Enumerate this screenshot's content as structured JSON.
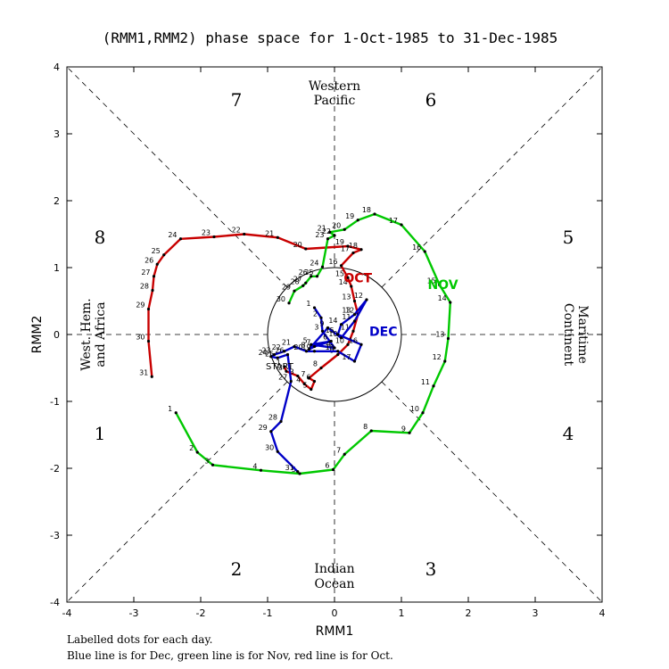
{
  "chart_data": {
    "type": "line",
    "title": "(RMM1,RMM2) phase space for  1-Oct-1985 to 31-Dec-1985",
    "xlabel": "RMM1",
    "ylabel": "RMM2",
    "xlim": [
      -4,
      4
    ],
    "ylim": [
      -4,
      4
    ],
    "x_ticks": [
      "-4",
      "-3",
      "-2",
      "-1",
      "0",
      "1",
      "2",
      "3",
      "4"
    ],
    "y_ticks": [
      "-4",
      "-3",
      "-2",
      "-1",
      "0",
      "1",
      "2",
      "3",
      "4"
    ],
    "phase_numbers": [
      "1",
      "2",
      "3",
      "4",
      "5",
      "6",
      "7",
      "8"
    ],
    "regions": {
      "top": [
        "Western",
        "Pacific"
      ],
      "bottom": [
        "Indian",
        "Ocean"
      ],
      "left": [
        "West. Hem.",
        "and Africa"
      ],
      "right": [
        "Maritime",
        "Continent"
      ]
    },
    "start_label": "START",
    "notes": [
      "Labelled dots for each day.",
      "Blue line is for Dec, green line is for Nov, red line is for Oct."
    ],
    "series": [
      {
        "name": "OCT",
        "color": "#c80000",
        "points": [
          [
            -0.75,
            -0.48,
            "1"
          ],
          [
            -0.72,
            -0.55,
            "2"
          ],
          [
            -0.55,
            -0.62,
            "3"
          ],
          [
            -0.45,
            -0.74,
            "4"
          ],
          [
            -0.35,
            -0.82,
            "5"
          ],
          [
            -0.3,
            -0.7,
            "6"
          ],
          [
            -0.38,
            -0.65,
            "7"
          ],
          [
            -0.2,
            -0.5,
            "8"
          ],
          [
            0.05,
            -0.3,
            "9"
          ],
          [
            0.2,
            -0.15,
            "10"
          ],
          [
            0.28,
            0.05,
            "11"
          ],
          [
            0.35,
            0.3,
            "12"
          ],
          [
            0.3,
            0.5,
            "13"
          ],
          [
            0.25,
            0.72,
            "14"
          ],
          [
            0.2,
            0.85,
            "15"
          ],
          [
            0.1,
            1.03,
            "16"
          ],
          [
            0.28,
            1.22,
            "17"
          ],
          [
            0.4,
            1.27,
            "18"
          ],
          [
            0.2,
            1.32,
            "19"
          ],
          [
            -0.43,
            1.28,
            "20"
          ],
          [
            -0.85,
            1.45,
            "21"
          ],
          [
            -1.35,
            1.5,
            "22"
          ],
          [
            -1.8,
            1.46,
            "23"
          ],
          [
            -2.3,
            1.43,
            "24"
          ],
          [
            -2.55,
            1.19,
            "25"
          ],
          [
            -2.65,
            1.05,
            "26"
          ],
          [
            -2.7,
            0.87,
            "27"
          ],
          [
            -2.72,
            0.66,
            "28"
          ],
          [
            -2.78,
            0.38,
            "29"
          ],
          [
            -2.78,
            -0.1,
            "30"
          ],
          [
            -2.73,
            -0.63,
            "31"
          ]
        ]
      },
      {
        "name": "NOV",
        "color": "#00c800",
        "points": [
          [
            -2.37,
            -1.17,
            "1"
          ],
          [
            -2.05,
            -1.76,
            "2"
          ],
          [
            -1.82,
            -1.95,
            "3"
          ],
          [
            -1.1,
            -2.03,
            "4"
          ],
          [
            -0.52,
            -2.08,
            "5"
          ],
          [
            -0.02,
            -2.02,
            "6"
          ],
          [
            0.15,
            -1.79,
            "7"
          ],
          [
            0.55,
            -1.44,
            "8"
          ],
          [
            1.12,
            -1.47,
            "9"
          ],
          [
            1.32,
            -1.17,
            "10"
          ],
          [
            1.48,
            -0.77,
            "11"
          ],
          [
            1.65,
            -0.4,
            "12"
          ],
          [
            1.7,
            -0.06,
            "13"
          ],
          [
            1.73,
            0.48,
            "14"
          ],
          [
            1.57,
            0.74,
            "15"
          ],
          [
            1.35,
            1.24,
            "16"
          ],
          [
            1.0,
            1.64,
            "17"
          ],
          [
            0.6,
            1.8,
            "18"
          ],
          [
            0.35,
            1.71,
            "19"
          ],
          [
            0.15,
            1.57,
            "20"
          ],
          [
            -0.07,
            1.53,
            "21"
          ],
          [
            0.0,
            1.48,
            "22"
          ],
          [
            -0.1,
            1.43,
            "23"
          ],
          [
            -0.18,
            1.01,
            "24"
          ],
          [
            -0.26,
            0.87,
            "25"
          ],
          [
            -0.35,
            0.87,
            "26"
          ],
          [
            -0.43,
            0.77,
            "27"
          ],
          [
            -0.47,
            0.73,
            "28"
          ],
          [
            -0.6,
            0.65,
            "29"
          ],
          [
            -0.68,
            0.47,
            "30"
          ]
        ]
      },
      {
        "name": "DEC",
        "color": "#0000c8",
        "points": [
          [
            -0.3,
            0.4,
            "1"
          ],
          [
            -0.2,
            0.25,
            "2"
          ],
          [
            -0.18,
            0.05,
            "3"
          ],
          [
            0.0,
            -0.2,
            "4"
          ],
          [
            -0.35,
            -0.15,
            "5"
          ],
          [
            -0.05,
            -0.1,
            "6"
          ],
          [
            -0.3,
            -0.18,
            "7"
          ],
          [
            -0.38,
            -0.22,
            "8"
          ],
          [
            -0.1,
            0.1,
            "9"
          ],
          [
            0.1,
            -0.05,
            "10"
          ],
          [
            0.3,
            0.2,
            "11"
          ],
          [
            0.48,
            0.52,
            "12"
          ],
          [
            0.3,
            0.3,
            "13"
          ],
          [
            0.1,
            0.15,
            "14"
          ],
          [
            0.05,
            0.0,
            "15"
          ],
          [
            0.4,
            -0.15,
            "16"
          ],
          [
            0.3,
            -0.4,
            "17"
          ],
          [
            0.05,
            -0.25,
            "18"
          ],
          [
            -0.3,
            -0.25,
            "19"
          ],
          [
            -0.42,
            -0.25,
            "20"
          ],
          [
            -0.6,
            -0.18,
            "21"
          ],
          [
            -0.75,
            -0.25,
            "22"
          ],
          [
            -0.9,
            -0.3,
            "23"
          ],
          [
            -0.95,
            -0.33,
            "24"
          ],
          [
            -0.85,
            -0.35,
            "25"
          ],
          [
            -0.7,
            -0.3,
            "26"
          ],
          [
            -0.65,
            -0.7,
            "27"
          ],
          [
            -0.8,
            -1.3,
            "28"
          ],
          [
            -0.95,
            -1.45,
            "29"
          ],
          [
            -0.85,
            -1.75,
            "30"
          ],
          [
            -0.55,
            -2.05,
            "31"
          ]
        ]
      }
    ]
  }
}
